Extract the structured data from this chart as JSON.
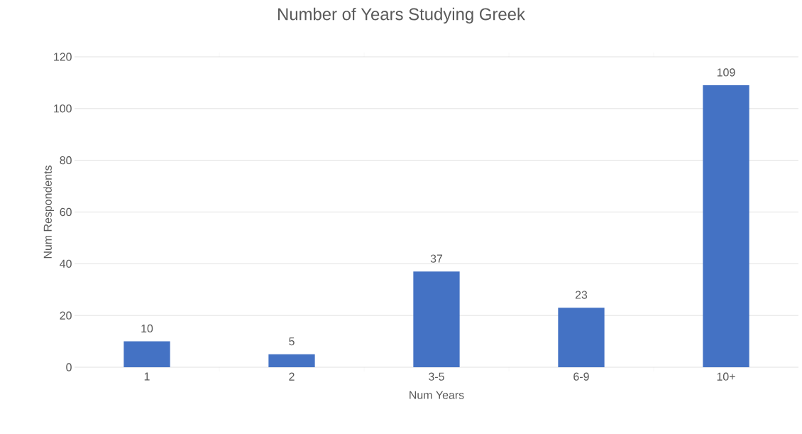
{
  "chart_data": {
    "type": "bar",
    "title": "Number of Years Studying Greek",
    "xlabel": "Num Years",
    "ylabel": "Num Respondents",
    "categories": [
      "1",
      "2",
      "3-5",
      "6-9",
      "10+"
    ],
    "values": [
      10,
      5,
      37,
      23,
      109
    ],
    "color": "#4472c4",
    "ylim": [
      0,
      120
    ],
    "yticks": [
      0,
      20,
      40,
      60,
      80,
      100,
      120
    ],
    "grid": "y",
    "data_labels": true
  }
}
